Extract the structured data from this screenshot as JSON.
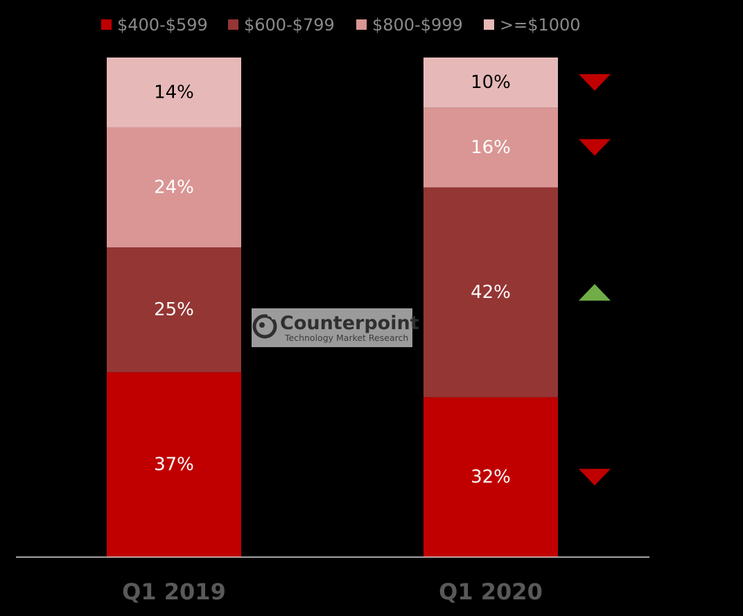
{
  "chart_data": {
    "type": "bar",
    "stacked": true,
    "normalized": true,
    "categories": [
      "Q1 2019",
      "Q1 2020"
    ],
    "series": [
      {
        "name": "$400-$599",
        "color": "#C00000",
        "values": [
          37,
          32
        ],
        "labels": [
          "37%",
          "32%"
        ]
      },
      {
        "name": "$600-$799",
        "color": "#943634",
        "values": [
          25,
          42
        ],
        "labels": [
          "25%",
          "42%"
        ]
      },
      {
        "name": "$800-$999",
        "color": "#D99694",
        "values": [
          24,
          16
        ],
        "labels": [
          "24%",
          "16%"
        ]
      },
      {
        "name": ">=$1000",
        "color": "#E6B9B8",
        "values": [
          14,
          10
        ],
        "labels": [
          "14%",
          "10%"
        ]
      }
    ],
    "ylim": [
      0,
      100
    ],
    "legend_position": "top",
    "grid": false,
    "change_indicators": [
      {
        "series": "$400-$599",
        "direction": "down",
        "color": "#C00000"
      },
      {
        "series": "$600-$799",
        "direction": "up",
        "color": "#70AD47"
      },
      {
        "series": "$800-$999",
        "direction": "down",
        "color": "#C00000"
      },
      {
        "series": ">=$1000",
        "direction": "down",
        "color": "#C00000"
      }
    ]
  },
  "watermark": {
    "title": "Counterpoint",
    "subtitle": "Technology Market Research"
  },
  "colors": {
    "background": "#000000",
    "axis": "#D9D9D9",
    "label_light": "#FFFFFF",
    "label_dark": "#000000"
  }
}
